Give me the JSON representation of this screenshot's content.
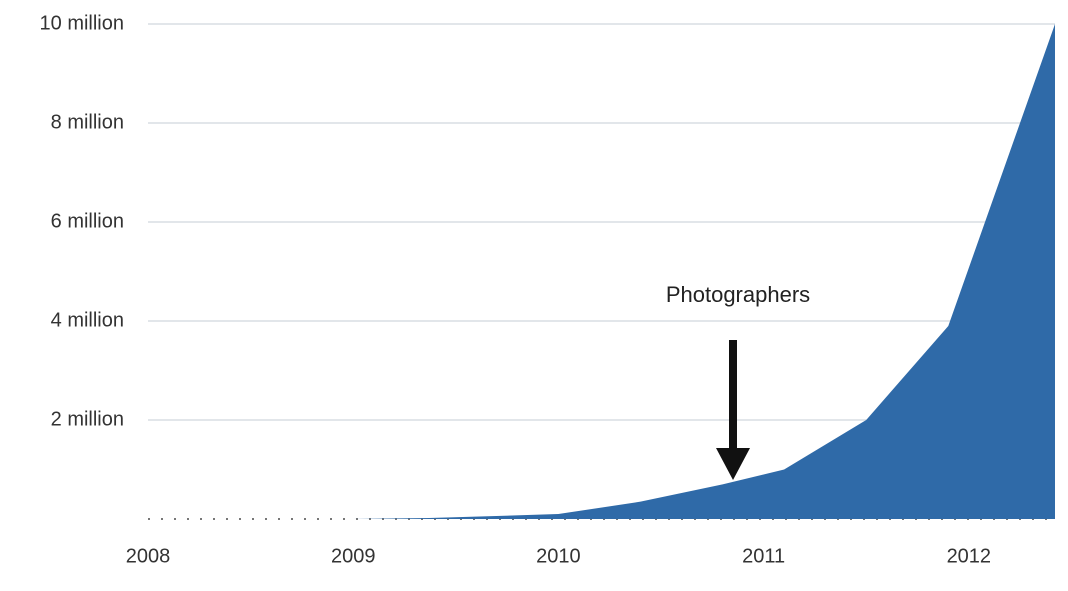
{
  "chart_data": {
    "type": "area",
    "annotation": "Photographers",
    "x": [
      2008,
      2009,
      2009.37,
      2010,
      2010.4,
      2010.8,
      2011.1,
      2011.5,
      2011.9,
      2012.42
    ],
    "values": [
      0,
      0,
      20000,
      100000,
      350000,
      700000,
      1000000,
      2000000,
      3900000,
      10000000
    ],
    "color": "#2f6aa8",
    "xlim": [
      2008,
      2012.42
    ],
    "xticks": [
      2008,
      2009,
      2010,
      2011,
      2012
    ],
    "ylim": [
      0,
      10000000
    ],
    "yticks": [
      {
        "value": 2000000,
        "label": "2 million"
      },
      {
        "value": 4000000,
        "label": "4 million"
      },
      {
        "value": 6000000,
        "label": "6 million"
      },
      {
        "value": 8000000,
        "label": "8 million"
      },
      {
        "value": 10000000,
        "label": "10 million"
      }
    ],
    "grid": true
  }
}
